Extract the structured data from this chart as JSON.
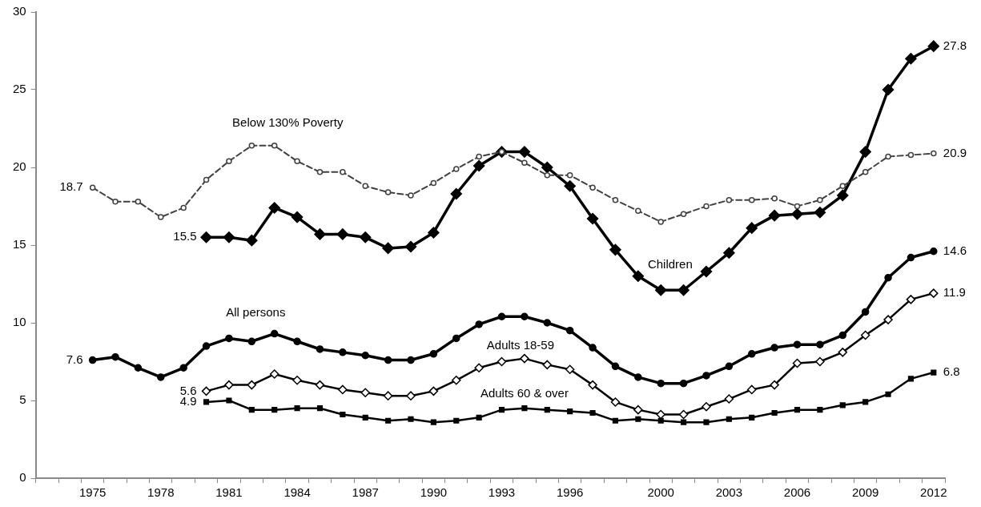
{
  "chart_data": {
    "type": "line",
    "categories": [
      null,
      null,
      "1975",
      null,
      null,
      "1978",
      null,
      null,
      "1981",
      null,
      null,
      "1984",
      null,
      null,
      "1987",
      null,
      null,
      "1990",
      null,
      null,
      "1993",
      null,
      null,
      "1996",
      null,
      null,
      null,
      "2000",
      null,
      null,
      "2003",
      null,
      null,
      "2006",
      null,
      null,
      "2009",
      null,
      null,
      "2012"
    ],
    "ylim": [
      0,
      30
    ],
    "yticks": [
      0,
      5,
      10,
      15,
      20,
      25,
      30
    ],
    "grid": false,
    "legend": false,
    "series": [
      {
        "name": "Below 130% Poverty",
        "color": "#404040",
        "marker": "circle",
        "line_style": "dashed",
        "values": [
          null,
          null,
          18.7,
          17.8,
          17.8,
          16.8,
          17.4,
          19.2,
          20.4,
          21.4,
          21.4,
          20.4,
          19.7,
          19.7,
          18.8,
          18.4,
          18.2,
          19.0,
          19.9,
          20.7,
          21.0,
          20.3,
          19.5,
          19.5,
          18.7,
          17.9,
          17.2,
          16.5,
          17.0,
          17.5,
          17.9,
          17.9,
          18.0,
          17.5,
          17.9,
          18.8,
          19.7,
          20.7,
          20.8,
          20.9
        ],
        "value_labels": [
          null,
          null,
          "18.7",
          null,
          null,
          null,
          null,
          null,
          null,
          null,
          null,
          null,
          null,
          null,
          null,
          null,
          null,
          null,
          null,
          null,
          null,
          null,
          null,
          null,
          null,
          null,
          null,
          null,
          null,
          null,
          null,
          null,
          null,
          null,
          null,
          null,
          null,
          null,
          null,
          "20.9"
        ]
      },
      {
        "name": "Children",
        "color": "#000000",
        "marker": "diamond",
        "line_style": "solid",
        "values": [
          null,
          null,
          null,
          null,
          null,
          null,
          null,
          15.5,
          15.5,
          15.3,
          17.4,
          16.8,
          15.7,
          15.7,
          15.5,
          14.8,
          14.9,
          15.8,
          18.3,
          20.1,
          21.0,
          21.0,
          20.0,
          18.8,
          16.7,
          14.7,
          13.0,
          12.1,
          12.1,
          13.3,
          14.5,
          16.1,
          16.9,
          17.0,
          17.1,
          18.2,
          21.0,
          25.0,
          27.0,
          27.8
        ],
        "value_labels": [
          null,
          null,
          null,
          null,
          null,
          null,
          null,
          "15.5",
          null,
          null,
          null,
          null,
          null,
          null,
          null,
          null,
          null,
          null,
          null,
          null,
          null,
          null,
          null,
          null,
          null,
          null,
          null,
          null,
          null,
          null,
          null,
          null,
          null,
          null,
          null,
          null,
          null,
          null,
          null,
          "27.8"
        ]
      },
      {
        "name": "All persons",
        "color": "#000000",
        "marker": "circle",
        "line_style": "solid",
        "values": [
          null,
          null,
          7.6,
          7.8,
          7.1,
          6.5,
          7.1,
          8.5,
          9.0,
          8.8,
          9.3,
          8.8,
          8.3,
          8.1,
          7.9,
          7.6,
          7.6,
          8.0,
          9.0,
          9.9,
          10.4,
          10.4,
          10.0,
          9.5,
          8.4,
          7.2,
          6.5,
          6.1,
          6.1,
          6.6,
          7.2,
          8.0,
          8.4,
          8.6,
          8.6,
          9.2,
          10.7,
          12.9,
          14.2,
          14.6
        ],
        "value_labels": [
          null,
          null,
          "7.6",
          null,
          null,
          null,
          null,
          null,
          null,
          null,
          null,
          null,
          null,
          null,
          null,
          null,
          null,
          null,
          null,
          null,
          null,
          null,
          null,
          null,
          null,
          null,
          null,
          null,
          null,
          null,
          null,
          null,
          null,
          null,
          null,
          null,
          null,
          null,
          null,
          "14.6"
        ]
      },
      {
        "name": "Adults 18-59",
        "color": "#000000",
        "marker": "diamond",
        "line_style": "solid",
        "values": [
          null,
          null,
          null,
          null,
          null,
          null,
          null,
          5.6,
          6.0,
          6.0,
          6.7,
          6.3,
          6.0,
          5.7,
          5.5,
          5.3,
          5.3,
          5.6,
          6.3,
          7.1,
          7.5,
          7.7,
          7.3,
          7.0,
          6.0,
          4.9,
          4.4,
          4.1,
          4.1,
          4.6,
          5.1,
          5.7,
          6.0,
          7.4,
          7.5,
          8.1,
          9.2,
          10.2,
          11.5,
          11.9
        ],
        "value_labels": [
          null,
          null,
          null,
          null,
          null,
          null,
          null,
          "5.6",
          null,
          null,
          null,
          null,
          null,
          null,
          null,
          null,
          null,
          null,
          null,
          null,
          null,
          null,
          null,
          null,
          null,
          null,
          null,
          null,
          null,
          null,
          null,
          null,
          null,
          null,
          null,
          null,
          null,
          null,
          null,
          "11.9"
        ]
      },
      {
        "name": "Adults 60 & over",
        "color": "#000000",
        "marker": "square",
        "line_style": "solid",
        "values": [
          null,
          null,
          null,
          null,
          null,
          null,
          null,
          4.9,
          5.0,
          4.4,
          4.4,
          4.5,
          4.5,
          4.1,
          3.9,
          3.7,
          3.8,
          3.6,
          3.7,
          3.9,
          4.4,
          4.5,
          4.4,
          4.3,
          4.2,
          3.7,
          3.8,
          3.7,
          3.6,
          3.6,
          3.8,
          3.9,
          4.2,
          4.4,
          4.4,
          4.7,
          4.9,
          5.4,
          6.4,
          6.8
        ],
        "value_labels": [
          null,
          null,
          null,
          null,
          null,
          null,
          null,
          "4.9",
          null,
          null,
          null,
          null,
          null,
          null,
          null,
          null,
          null,
          null,
          null,
          null,
          null,
          null,
          null,
          null,
          null,
          null,
          null,
          null,
          null,
          null,
          null,
          null,
          null,
          null,
          null,
          null,
          null,
          null,
          null,
          "6.8"
        ]
      }
    ]
  }
}
